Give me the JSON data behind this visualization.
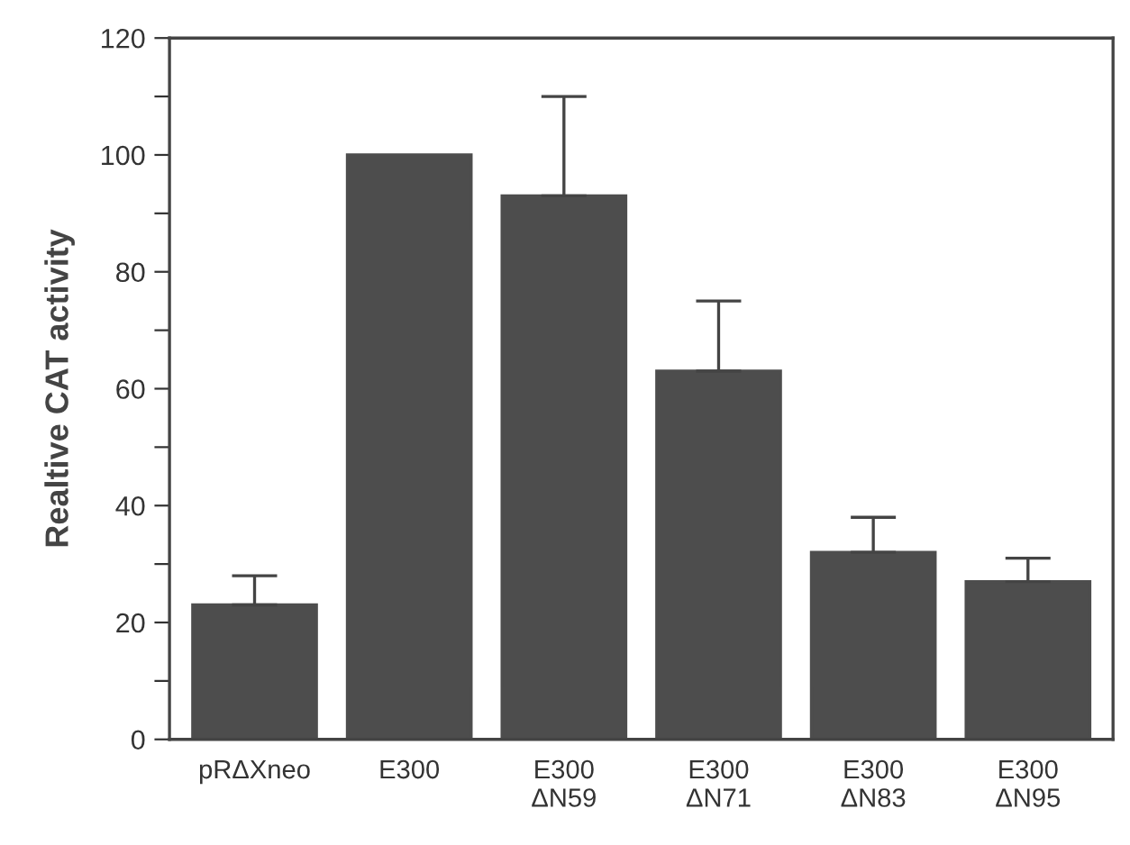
{
  "chart_data": {
    "type": "bar",
    "ylabel": "Realtive CAT activity",
    "categories": [
      "pRΔXneo",
      "E300",
      "E300\nΔN59",
      "E300\nΔN71",
      "E300\nΔN83",
      "E300\nΔN95"
    ],
    "values": [
      23,
      100,
      93,
      63,
      32,
      27
    ],
    "errors": [
      [
        23,
        28
      ],
      null,
      [
        93,
        110
      ],
      [
        63,
        75
      ],
      [
        32,
        38
      ],
      [
        27,
        31
      ]
    ],
    "color": "#4d4d4d",
    "ylim": [
      0,
      120
    ],
    "yticks": [
      0,
      {
        "value": 10,
        "label": null
      },
      20,
      {
        "value": 30,
        "label": null
      },
      40,
      {
        "value": 50,
        "label": null
      },
      60,
      {
        "value": 70,
        "label": null
      },
      80,
      {
        "value": 90,
        "label": null
      },
      100,
      {
        "value": 110,
        "label": null
      },
      120
    ],
    "grid": false,
    "legend": false
  }
}
